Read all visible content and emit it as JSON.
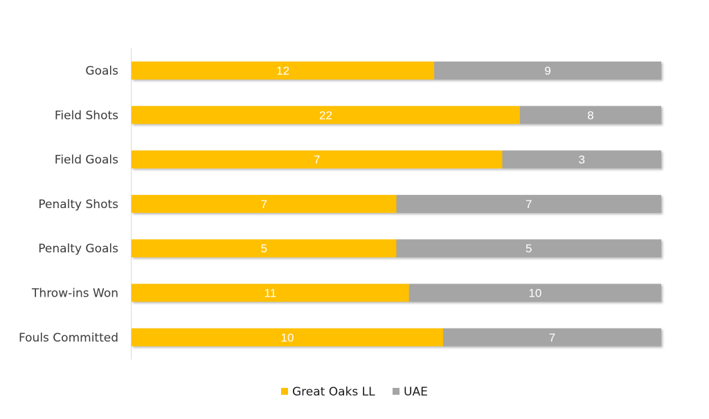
{
  "chart_data": {
    "type": "bar",
    "orientation": "horizontal",
    "stacking": "percent",
    "categories": [
      "Goals",
      "Field Shots",
      "Field Goals",
      "Penalty Shots",
      "Penalty Goals",
      "Throw-ins Won",
      "Fouls Committed"
    ],
    "series": [
      {
        "name": "Great Oaks LL",
        "values": [
          12,
          22,
          7,
          7,
          5,
          11,
          10
        ],
        "color": "#FFC000"
      },
      {
        "name": "UAE",
        "values": [
          9,
          8,
          3,
          7,
          5,
          10,
          7
        ],
        "color": "#A5A5A5"
      }
    ],
    "title": "",
    "xlabel": "",
    "ylabel": "",
    "xlim": [
      0,
      1
    ],
    "grid": false,
    "legend": "bottom"
  }
}
